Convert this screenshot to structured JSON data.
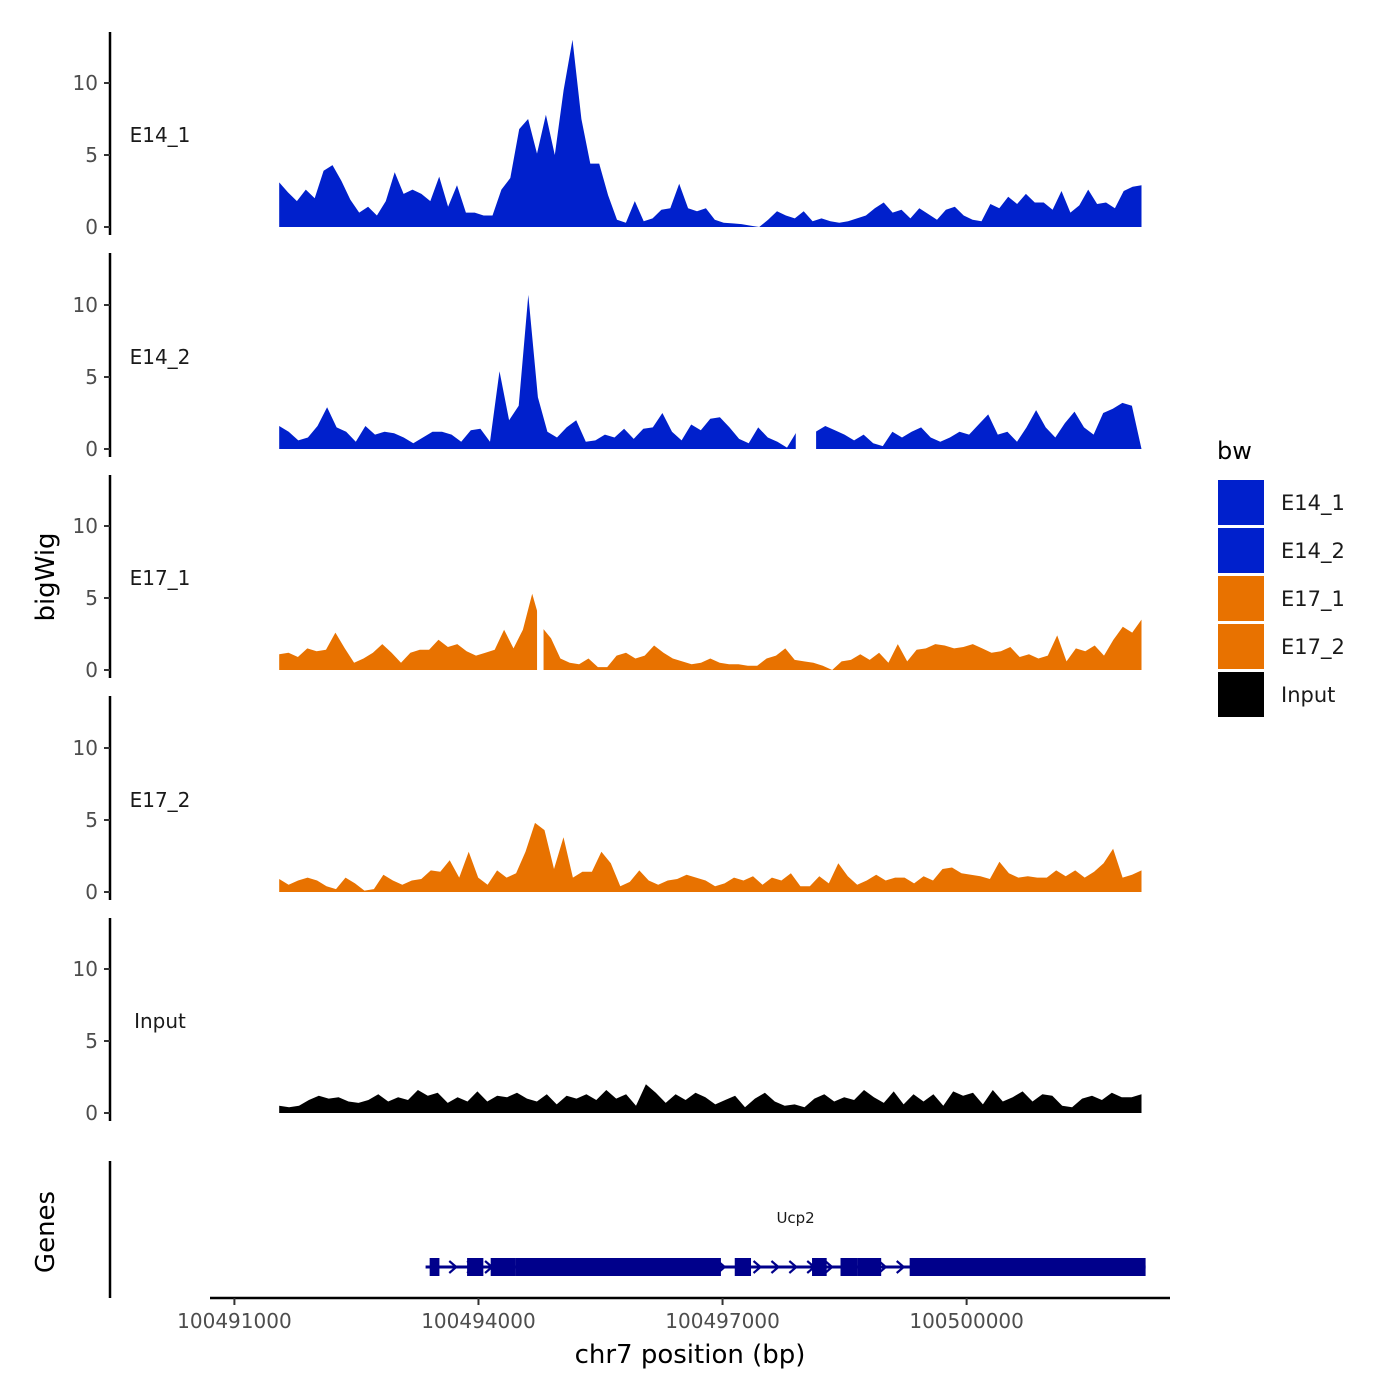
{
  "chart_data": {
    "type": "area",
    "ylabel": "bigWig",
    "xlabel": "chr7 position (bp)",
    "genes_label": "Genes",
    "ylim": [
      0,
      14
    ],
    "yticks": [
      0,
      5,
      10
    ],
    "xlim": [
      100490700,
      100502500
    ],
    "xticks": [
      100491000,
      100494000,
      100497000,
      100500000
    ],
    "xtick_labels": [
      "100491000",
      "100494000",
      "100497000",
      "100500000"
    ],
    "data_range": [
      100491550,
      100502150
    ],
    "legend": {
      "title": "bw",
      "entries": [
        {
          "label": "E14_1",
          "color": "#0020CC"
        },
        {
          "label": "E14_2",
          "color": "#0020CC"
        },
        {
          "label": "E17_1",
          "color": "#E87200"
        },
        {
          "label": "E17_2",
          "color": "#E87200"
        },
        {
          "label": "Input",
          "color": "#000000"
        }
      ]
    },
    "tracks": [
      {
        "name": "E14_1",
        "color": "#0020CC",
        "values": [
          3.1,
          2.4,
          1.8,
          2.6,
          2.0,
          3.9,
          4.3,
          3.2,
          1.9,
          1.0,
          1.4,
          0.8,
          1.8,
          3.8,
          2.3,
          2.6,
          2.3,
          1.8,
          3.5,
          1.4,
          2.9,
          1.0,
          1.0,
          0.8,
          0.8,
          2.6,
          3.4,
          6.8,
          7.5,
          5.1,
          7.8,
          5.0,
          9.5,
          13.0,
          7.5,
          4.4,
          4.4,
          2.2,
          0.5,
          0.3,
          1.8,
          0.4,
          0.6,
          1.2,
          1.3,
          3.0,
          1.3,
          1.1,
          1.3,
          0.5,
          0.3,
          0.25,
          0.2,
          0.1,
          0.0,
          0.5,
          1.1,
          0.8,
          0.6,
          1.1,
          0.4,
          0.6,
          0.4,
          0.3,
          0.4,
          0.6,
          0.8,
          1.3,
          1.7,
          1.0,
          1.2,
          0.6,
          1.3,
          0.9,
          0.5,
          1.2,
          1.4,
          0.8,
          0.5,
          0.4,
          1.6,
          1.3,
          2.1,
          1.6,
          2.3,
          1.7,
          1.7,
          1.2,
          2.5,
          1.0,
          1.5,
          2.6,
          1.6,
          1.7,
          1.3,
          2.5,
          2.8,
          2.9
        ],
        "gaps": []
      },
      {
        "name": "E14_2",
        "color": "#0020CC",
        "values": [
          1.6,
          1.2,
          0.6,
          0.8,
          1.6,
          2.9,
          1.5,
          1.2,
          0.5,
          1.6,
          1.0,
          1.2,
          1.1,
          0.8,
          0.4,
          0.8,
          1.2,
          1.2,
          1.0,
          0.5,
          1.3,
          1.4,
          0.5,
          5.4,
          2.0,
          3.0,
          10.7,
          3.6,
          1.2,
          0.8,
          1.5,
          2.0,
          0.5,
          0.6,
          1.0,
          0.8,
          1.4,
          0.7,
          1.4,
          1.5,
          2.5,
          1.2,
          0.6,
          1.7,
          1.3,
          2.1,
          2.2,
          1.5,
          0.7,
          0.4,
          1.5,
          0.8,
          0.5,
          0.1,
          1.2,
          0.5,
          1.2,
          1.6,
          1.3,
          1.0,
          0.6,
          1.0,
          0.4,
          0.2,
          1.2,
          0.8,
          1.2,
          1.5,
          0.8,
          0.5,
          0.8,
          1.2,
          1.0,
          1.7,
          2.4,
          1.0,
          1.2,
          0.5,
          1.5,
          2.7,
          1.5,
          0.8,
          1.8,
          2.6,
          1.5,
          1.0,
          2.5,
          2.8,
          3.2,
          3.0,
          0
        ],
        "gaps": [
          [
            100497900,
            100498150
          ]
        ]
      },
      {
        "name": "E17_1",
        "color": "#E87200",
        "values": [
          1.1,
          1.2,
          0.9,
          1.5,
          1.3,
          1.4,
          2.6,
          1.5,
          0.5,
          0.8,
          1.2,
          1.8,
          1.2,
          0.5,
          1.2,
          1.4,
          1.4,
          2.1,
          1.6,
          1.8,
          1.3,
          1.0,
          1.2,
          1.4,
          2.8,
          1.5,
          2.8,
          5.3,
          3.0,
          2.2,
          0.8,
          0.5,
          0.4,
          0.8,
          0.2,
          0.2,
          1.0,
          1.2,
          0.8,
          1.0,
          1.7,
          1.2,
          0.8,
          0.6,
          0.4,
          0.5,
          0.8,
          0.5,
          0.4,
          0.4,
          0.3,
          0.3,
          0.8,
          1.0,
          1.5,
          0.7,
          0.6,
          0.5,
          0.3,
          0.0,
          0.6,
          0.7,
          1.1,
          0.7,
          1.2,
          0.5,
          1.8,
          0.6,
          1.4,
          1.5,
          1.8,
          1.7,
          1.5,
          1.6,
          1.8,
          1.5,
          1.2,
          1.3,
          1.6,
          0.9,
          1.1,
          0.8,
          1.0,
          2.4,
          0.6,
          1.5,
          1.3,
          1.7,
          1.0,
          2.1,
          3.0,
          2.6,
          3.5
        ],
        "gaps": [
          [
            100494720,
            100494800
          ]
        ]
      },
      {
        "name": "E17_2",
        "color": "#E87200",
        "values": [
          0.9,
          0.5,
          0.8,
          1.0,
          0.8,
          0.4,
          0.2,
          1.0,
          0.6,
          0.1,
          0.2,
          1.2,
          0.8,
          0.5,
          0.8,
          0.9,
          1.5,
          1.4,
          2.2,
          1.0,
          2.8,
          1.0,
          0.5,
          1.5,
          1.0,
          1.3,
          2.8,
          4.8,
          4.3,
          1.6,
          3.8,
          1.0,
          1.4,
          1.4,
          2.8,
          2.0,
          0.4,
          0.7,
          1.5,
          0.8,
          0.5,
          0.8,
          0.9,
          1.2,
          1.0,
          0.8,
          0.4,
          0.6,
          1.0,
          0.8,
          1.1,
          0.5,
          1.0,
          0.8,
          1.3,
          0.4,
          0.4,
          1.1,
          0.6,
          2.0,
          1.1,
          0.5,
          0.8,
          1.2,
          0.8,
          1.0,
          1.0,
          0.6,
          1.1,
          0.8,
          1.6,
          1.7,
          1.3,
          1.2,
          1.1,
          0.9,
          2.1,
          1.3,
          1.0,
          1.1,
          1.0,
          1.0,
          1.5,
          1.1,
          1.5,
          1.0,
          1.4,
          2.0,
          3.0,
          1.0,
          1.2,
          1.5
        ],
        "gaps": []
      },
      {
        "name": "Input",
        "color": "#000000",
        "values": [
          0.5,
          0.4,
          0.5,
          0.9,
          1.2,
          1.0,
          1.1,
          0.8,
          0.7,
          0.9,
          1.3,
          0.8,
          1.1,
          0.9,
          1.6,
          1.2,
          1.4,
          0.7,
          1.1,
          0.8,
          1.5,
          0.8,
          1.2,
          1.1,
          1.4,
          1.0,
          0.8,
          1.3,
          0.6,
          1.2,
          1.0,
          1.3,
          0.9,
          1.6,
          1.0,
          1.3,
          0.5,
          2.0,
          1.4,
          0.7,
          1.3,
          0.9,
          1.4,
          1.1,
          0.6,
          0.9,
          1.2,
          0.4,
          1.0,
          1.4,
          0.8,
          0.5,
          0.6,
          0.4,
          1.0,
          1.3,
          0.8,
          1.1,
          0.9,
          1.6,
          1.1,
          0.7,
          1.5,
          0.6,
          1.3,
          0.8,
          1.3,
          0.5,
          1.5,
          1.2,
          1.4,
          0.6,
          1.6,
          0.8,
          1.1,
          1.5,
          0.8,
          1.3,
          1.2,
          0.5,
          0.4,
          1.0,
          1.2,
          0.9,
          1.4,
          1.1,
          1.1,
          1.3
        ],
        "gaps": []
      }
    ],
    "gene": {
      "name": "Ucp2",
      "color": "#00008B",
      "strand": "+",
      "start": 100493350,
      "end": 100502200,
      "exons": [
        [
          100493400,
          100493520
        ],
        [
          100493860,
          100494060
        ],
        [
          100494150,
          100494450
        ],
        [
          100494450,
          100496600
        ],
        [
          100496600,
          100496980
        ],
        [
          100497150,
          100497350
        ],
        [
          100498100,
          100498280
        ],
        [
          100498450,
          100498660
        ],
        [
          100498660,
          100498950
        ],
        [
          100499300,
          100502200
        ]
      ]
    }
  }
}
